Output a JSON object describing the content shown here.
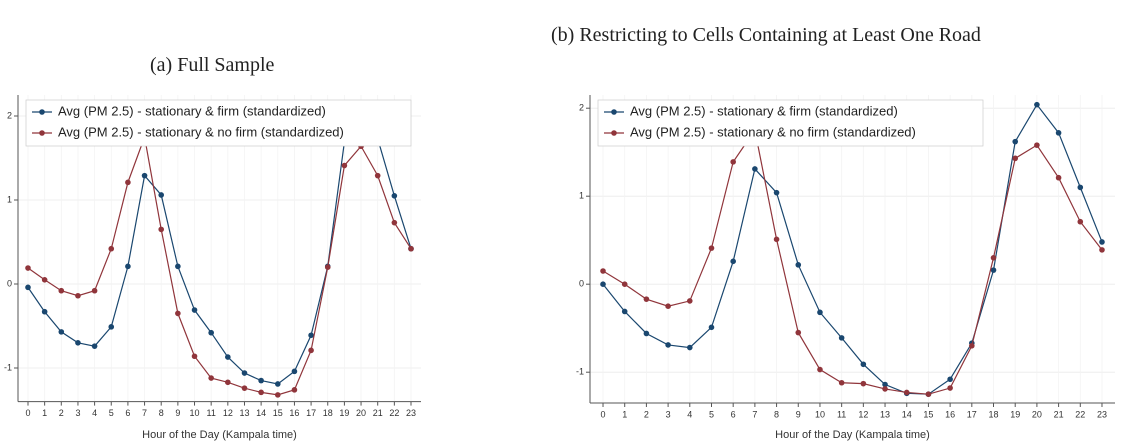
{
  "chart_data": [
    {
      "type": "line",
      "title": "(a) Full Sample",
      "xlabel": "Hour of the Day (Kampala time)",
      "x": [
        0,
        1,
        2,
        3,
        4,
        5,
        6,
        7,
        8,
        9,
        10,
        11,
        12,
        13,
        14,
        15,
        16,
        17,
        18,
        19,
        20,
        21,
        22,
        23
      ],
      "xlim": [
        -0.6,
        23.6
      ],
      "xticks": [
        0,
        1,
        2,
        3,
        4,
        5,
        6,
        7,
        8,
        9,
        10,
        11,
        12,
        13,
        14,
        15,
        16,
        17,
        18,
        19,
        20,
        21,
        22,
        23
      ],
      "ylim": [
        -1.4,
        2.25
      ],
      "yticks": [
        -1,
        0,
        1,
        2
      ],
      "grid": true,
      "legend": "top-left",
      "series": [
        {
          "name": "Avg (PM 2.5) - stationary & firm (standardized)",
          "color": "#1a476f",
          "values": [
            -0.04,
            -0.33,
            -0.57,
            -0.7,
            -0.74,
            -0.51,
            0.21,
            1.29,
            1.06,
            0.21,
            -0.31,
            -0.58,
            -0.87,
            -1.06,
            -1.15,
            -1.19,
            -1.04,
            -0.61,
            0.21,
            1.69,
            2.13,
            1.73,
            1.05,
            0.42
          ]
        },
        {
          "name": "Avg (PM 2.5) - stationary & no firm (standardized)",
          "color": "#90353b",
          "values": [
            0.19,
            0.05,
            -0.08,
            -0.14,
            -0.08,
            0.42,
            1.21,
            1.75,
            0.65,
            -0.35,
            -0.86,
            -1.12,
            -1.17,
            -1.24,
            -1.29,
            -1.32,
            -1.26,
            -0.79,
            0.2,
            1.41,
            1.64,
            1.29,
            0.73,
            0.42
          ]
        }
      ]
    },
    {
      "type": "line",
      "title": "(b) Restricting to Cells Containing at Least One Road",
      "xlabel": "Hour of the Day (Kampala time)",
      "x": [
        0,
        1,
        2,
        3,
        4,
        5,
        6,
        7,
        8,
        9,
        10,
        11,
        12,
        13,
        14,
        15,
        16,
        17,
        18,
        19,
        20,
        21,
        22,
        23
      ],
      "xlim": [
        -0.6,
        23.6
      ],
      "xticks": [
        0,
        1,
        2,
        3,
        4,
        5,
        6,
        7,
        8,
        9,
        10,
        11,
        12,
        13,
        14,
        15,
        16,
        17,
        18,
        19,
        20,
        21,
        22,
        23
      ],
      "ylim": [
        -1.35,
        2.15
      ],
      "yticks": [
        -1,
        0,
        1,
        2
      ],
      "grid": true,
      "legend": "top-left",
      "series": [
        {
          "name": "Avg (PM 2.5) - stationary & firm (standardized)",
          "color": "#1a476f",
          "values": [
            0,
            -0.31,
            -0.56,
            -0.69,
            -0.72,
            -0.49,
            0.26,
            1.31,
            1.04,
            0.22,
            -0.32,
            -0.61,
            -0.91,
            -1.14,
            -1.24,
            -1.25,
            -1.08,
            -0.67,
            0.16,
            1.62,
            2.04,
            1.72,
            1.1,
            0.48
          ]
        },
        {
          "name": "Avg (PM 2.5) - stationary & no firm (standardized)",
          "color": "#90353b",
          "values": [
            0.15,
            0,
            -0.17,
            -0.25,
            -0.19,
            0.41,
            1.39,
            1.75,
            0.51,
            -0.55,
            -0.97,
            -1.12,
            -1.13,
            -1.19,
            -1.23,
            -1.25,
            -1.18,
            -0.7,
            0.3,
            1.43,
            1.58,
            1.21,
            0.71,
            0.39
          ]
        }
      ]
    }
  ]
}
